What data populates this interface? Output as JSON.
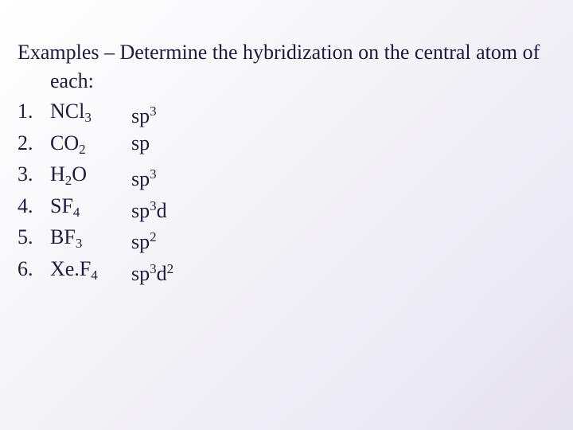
{
  "slide": {
    "title": "Examples – Determine the hybridization on the central atom of each:",
    "items": [
      {
        "number": "1.",
        "formula": [
          {
            "text": "NCl"
          },
          {
            "sub": "3"
          }
        ],
        "hybridization": [
          {
            "text": "sp"
          },
          {
            "sup": "3"
          }
        ]
      },
      {
        "number": "2.",
        "formula": [
          {
            "text": "CO"
          },
          {
            "sub": "2"
          }
        ],
        "hybridization": [
          {
            "text": "sp"
          }
        ]
      },
      {
        "number": "3.",
        "formula": [
          {
            "text": "H"
          },
          {
            "sub": "2"
          },
          {
            "text": "O"
          }
        ],
        "hybridization": [
          {
            "text": "sp"
          },
          {
            "sup": "3"
          }
        ]
      },
      {
        "number": "4.",
        "formula": [
          {
            "text": "SF"
          },
          {
            "sub": "4"
          }
        ],
        "hybridization": [
          {
            "text": "sp"
          },
          {
            "sup": "3"
          },
          {
            "text": "d"
          }
        ]
      },
      {
        "number": "5.",
        "formula": [
          {
            "text": "BF"
          },
          {
            "sub": "3"
          }
        ],
        "hybridization": [
          {
            "text": "sp"
          },
          {
            "sup": "2"
          }
        ]
      },
      {
        "number": "6.",
        "formula": [
          {
            "text": "Xe.F"
          },
          {
            "sub": "4"
          }
        ],
        "hybridization": [
          {
            "text": "sp"
          },
          {
            "sup": "3"
          },
          {
            "text": "d"
          },
          {
            "sup": "2"
          }
        ]
      }
    ]
  }
}
